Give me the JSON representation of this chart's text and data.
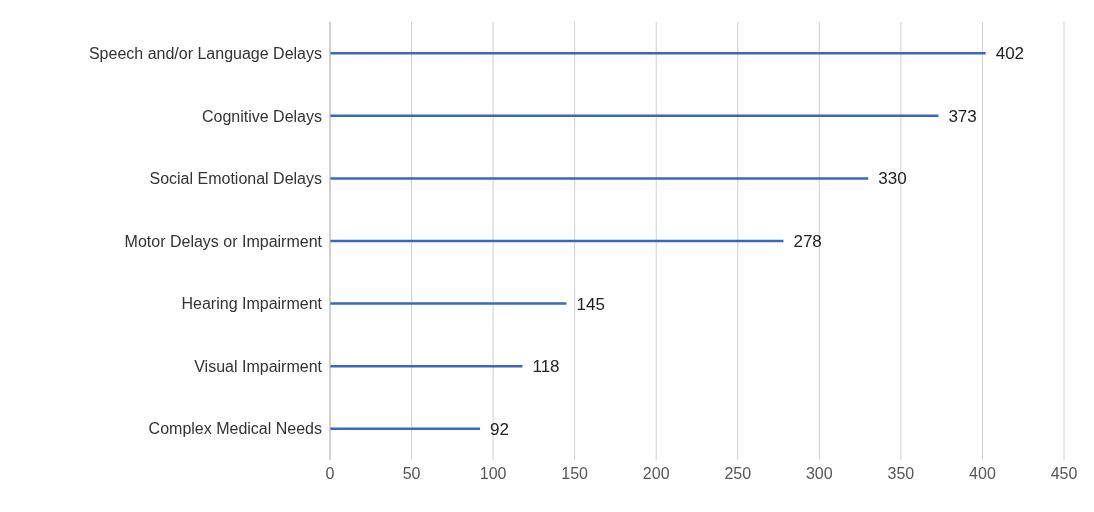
{
  "chart_data": {
    "type": "bar",
    "orientation": "horizontal",
    "categories": [
      "Speech and/or Language Delays",
      "Cognitive Delays",
      "Social Emotional Delays",
      "Motor Delays or Impairment",
      "Hearing Impairment",
      "Visual Impairment",
      "Complex Medical Needs"
    ],
    "values": [
      402,
      373,
      330,
      278,
      145,
      118,
      92
    ],
    "color": "#3b67c1",
    "xlim": [
      0,
      450
    ],
    "xticks": [
      0,
      50,
      100,
      150,
      200,
      250,
      300,
      350,
      400,
      450
    ],
    "grid": "x",
    "data_labels": true
  }
}
